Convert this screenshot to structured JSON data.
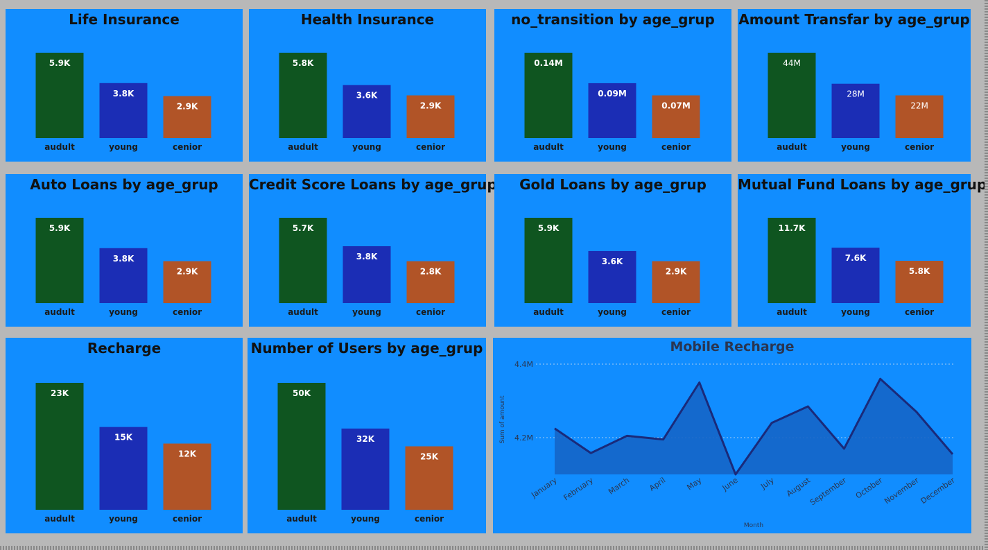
{
  "colors": {
    "panel_bg": "#118dff",
    "page_bg": "#b8b8b8",
    "audult": "#0f5520",
    "young": "#1b2db5",
    "cenior": "#b15427",
    "line": "#1a2a7a",
    "area": "#1565c8"
  },
  "chart_data": [
    {
      "type": "bar",
      "title": "Life Insurance",
      "categories": [
        "audult",
        "young",
        "cenior"
      ],
      "values": [
        5900,
        3800,
        2900
      ],
      "labels": [
        "5.9K",
        "3.8K",
        "2.9K"
      ]
    },
    {
      "type": "bar",
      "title": "Health Insurance",
      "categories": [
        "audult",
        "young",
        "cenior"
      ],
      "values": [
        5800,
        3600,
        2900
      ],
      "labels": [
        "5.8K",
        "3.6K",
        "2.9K"
      ]
    },
    {
      "type": "bar",
      "title": "no_transition by age_grup",
      "categories": [
        "audult",
        "young",
        "cenior"
      ],
      "values": [
        140000,
        90000,
        70000
      ],
      "labels": [
        "0.14M",
        "0.09M",
        "0.07M"
      ]
    },
    {
      "type": "bar",
      "title": "Amount Transfar by age_grup",
      "categories": [
        "audult",
        "young",
        "cenior"
      ],
      "values": [
        44000000,
        28000000,
        22000000
      ],
      "labels": [
        "44M",
        "28M",
        "22M"
      ]
    },
    {
      "type": "bar",
      "title": "Auto Loans by age_grup",
      "categories": [
        "audult",
        "young",
        "cenior"
      ],
      "values": [
        5900,
        3800,
        2900
      ],
      "labels": [
        "5.9K",
        "3.8K",
        "2.9K"
      ]
    },
    {
      "type": "bar",
      "title": "Credit Score Loans by age_grup",
      "categories": [
        "audult",
        "young",
        "cenior"
      ],
      "values": [
        5700,
        3800,
        2800
      ],
      "labels": [
        "5.7K",
        "3.8K",
        "2.8K"
      ]
    },
    {
      "type": "bar",
      "title": "Gold Loans by age_grup",
      "categories": [
        "audult",
        "young",
        "cenior"
      ],
      "values": [
        5900,
        3600,
        2900
      ],
      "labels": [
        "5.9K",
        "3.6K",
        "2.9K"
      ]
    },
    {
      "type": "bar",
      "title": "Mutual Fund Loans by age_grup",
      "categories": [
        "audult",
        "young",
        "cenior"
      ],
      "values": [
        11700,
        7600,
        5800
      ],
      "labels": [
        "11.7K",
        "7.6K",
        "5.8K"
      ]
    },
    {
      "type": "bar",
      "title": "Recharge",
      "categories": [
        "audult",
        "young",
        "cenior"
      ],
      "values": [
        23000,
        15000,
        12000
      ],
      "labels": [
        "23K",
        "15K",
        "12K"
      ]
    },
    {
      "type": "bar",
      "title": "Number of Users by age_grup",
      "categories": [
        "audult",
        "young",
        "cenior"
      ],
      "values": [
        50000,
        32000,
        25000
      ],
      "labels": [
        "50K",
        "32K",
        "25K"
      ]
    },
    {
      "type": "area",
      "title": "Mobile Recharge",
      "xlabel": "Month",
      "ylabel": "Sum of amount",
      "categories": [
        "January",
        "February",
        "March",
        "April",
        "May",
        "June",
        "July",
        "August",
        "September",
        "October",
        "November",
        "December"
      ],
      "values": [
        4225000,
        4158000,
        4205000,
        4195000,
        4350000,
        4100000,
        4240000,
        4285000,
        4170000,
        4360000,
        4270000,
        4155000
      ],
      "yticks": [
        4200000,
        4400000
      ],
      "ytick_labels": [
        "4.2M",
        "4.4M"
      ],
      "ylim": [
        4100000,
        4400000
      ],
      "grid": true
    }
  ]
}
